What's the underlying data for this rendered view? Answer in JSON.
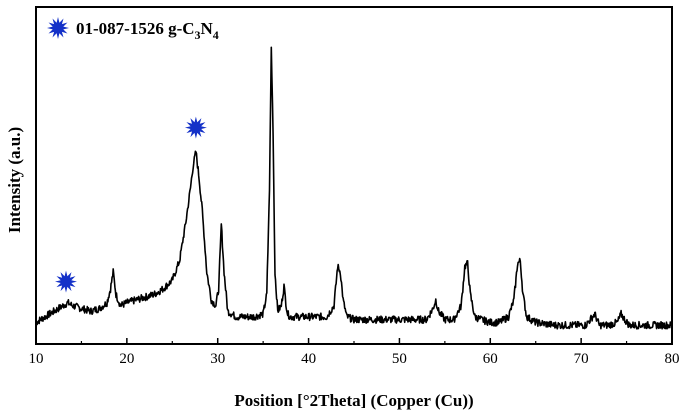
{
  "chart_data": {
    "type": "line",
    "xlabel": "Position [°2Theta] (Copper (Cu))",
    "ylabel": "Intensity (a.u.)",
    "xlim": [
      10,
      80
    ],
    "ylim": [
      0,
      100
    ],
    "x_ticks": [
      10,
      20,
      30,
      40,
      50,
      60,
      70,
      80
    ],
    "y_ticks_shown": false,
    "grid": false,
    "line_color": "#000000",
    "marker_color": "#1431c8",
    "legend": {
      "placement": "top-left",
      "prefix": "01-087-1526 g-C",
      "sub1": "3",
      "mid": "N",
      "sub2": "4",
      "marker": "starburst"
    },
    "series": [
      {
        "x": [
          10,
          11,
          12,
          13,
          13.5,
          14,
          15,
          16,
          17,
          17.8,
          18.2,
          18.5,
          18.8,
          19.3,
          20,
          21,
          22,
          23,
          24,
          25,
          25.8,
          26.5,
          27,
          27.3,
          27.6,
          27.9,
          28.3,
          28.8,
          29.3,
          29.8,
          30.1,
          30.4,
          30.7,
          31.1,
          32,
          33,
          34,
          35,
          35.4,
          35.7,
          35.9,
          36.1,
          36.3,
          36.6,
          37,
          37.3,
          37.5,
          37.7,
          38,
          39,
          40,
          41,
          42,
          42.8,
          43.2,
          43.5,
          43.8,
          44.2,
          45,
          47,
          49,
          51,
          53,
          53.7,
          54,
          54.3,
          55,
          56,
          56.8,
          57.2,
          57.5,
          57.8,
          58.3,
          59,
          60,
          61,
          62,
          62.6,
          63,
          63.3,
          63.6,
          64,
          65,
          67,
          69,
          70.5,
          71.5,
          72,
          73,
          74,
          74.4,
          74.8,
          75.3,
          76,
          78,
          80
        ],
        "y": [
          2,
          4,
          6,
          8,
          9,
          8,
          7,
          6,
          7,
          9,
          14,
          20,
          12,
          8,
          9,
          10,
          11,
          12,
          14,
          17,
          24,
          38,
          50,
          58,
          63,
          55,
          42,
          20,
          10,
          8,
          14,
          37,
          20,
          6,
          4,
          4,
          4,
          5,
          12,
          50,
          100,
          70,
          20,
          6,
          8,
          15,
          9,
          5,
          4,
          4,
          4,
          4,
          4,
          8,
          22,
          20,
          10,
          4,
          3,
          3,
          3,
          3,
          3,
          7,
          10,
          6,
          3,
          3,
          8,
          22,
          23,
          12,
          4,
          3,
          2,
          2,
          4,
          10,
          23,
          24,
          12,
          4,
          2,
          1,
          1,
          1,
          5,
          1,
          1,
          2,
          5,
          3,
          1,
          1,
          1,
          1
        ]
      }
    ],
    "markers": [
      {
        "x": 13.3,
        "y": 13
      },
      {
        "x": 27.6,
        "y": 68
      }
    ]
  }
}
